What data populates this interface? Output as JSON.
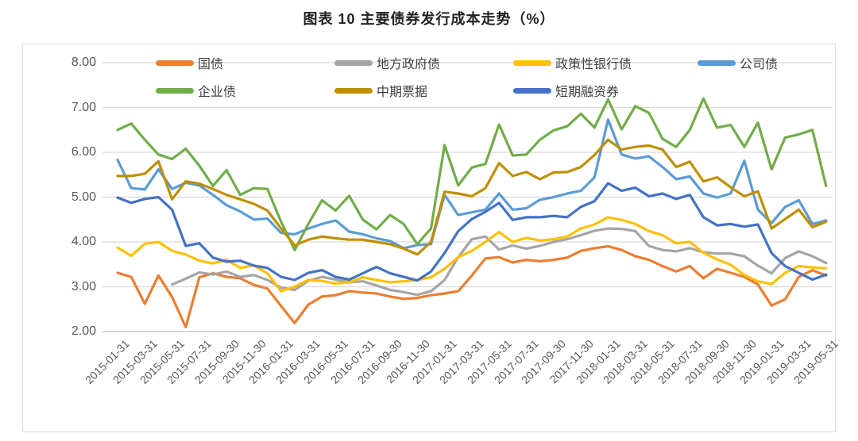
{
  "title": "图表 10 主要债券发行成本走势（%）",
  "chart_data": {
    "type": "line",
    "grid": "horizontal",
    "legend_position": "top-inside",
    "ylim": [
      2,
      8
    ],
    "y_tick_labels": [
      "8.00",
      "7.00",
      "6.00",
      "5.00",
      "4.00",
      "3.00",
      "2.00"
    ],
    "x_tick_labels": [
      "2015-01-31",
      "2015-03-31",
      "2015-05-31",
      "2015-07-31",
      "2015-09-30",
      "2015-11-30",
      "2016-01-31",
      "2016-03-31",
      "2016-05-31",
      "2016-07-31",
      "2016-09-30",
      "2016-11-30",
      "2017-01-31",
      "2017-03-31",
      "2017-05-31",
      "2017-07-31",
      "2017-09-30",
      "2017-11-30",
      "2018-01-31",
      "2018-03-31",
      "2018-05-31",
      "2018-07-31",
      "2018-09-30",
      "2018-11-30",
      "2019-01-31",
      "2019-03-31",
      "2019-05-31"
    ],
    "x_points_per_tick": 2,
    "colors": {
      "grid": "#d9d9d9",
      "axis": "#bfbfbf",
      "tick_text": "#595959"
    },
    "series": [
      {
        "name": "国债",
        "color": "#ED7D31",
        "values": [
          3.31,
          3.22,
          2.62,
          3.25,
          2.77,
          2.1,
          3.21,
          3.3,
          3.22,
          3.19,
          3.04,
          2.96,
          2.57,
          2.19,
          2.6,
          2.78,
          2.81,
          2.9,
          2.87,
          2.85,
          2.78,
          2.73,
          2.75,
          2.81,
          2.85,
          2.9,
          3.25,
          3.63,
          3.66,
          3.54,
          3.6,
          3.57,
          3.6,
          3.65,
          3.8,
          3.86,
          3.9,
          3.82,
          3.68,
          3.6,
          3.46,
          3.34,
          3.46,
          3.19,
          3.4,
          3.31,
          3.22,
          3.05,
          2.58,
          2.72,
          3.22,
          3.37,
          3.25
        ]
      },
      {
        "name": "地方政府债",
        "color": "#A5A5A5",
        "values": [
          null,
          null,
          null,
          null,
          3.05,
          3.18,
          3.32,
          3.27,
          3.34,
          3.22,
          3.26,
          3.15,
          2.98,
          2.93,
          3.13,
          3.22,
          3.16,
          3.1,
          3.12,
          3.03,
          2.93,
          2.88,
          2.82,
          2.9,
          3.15,
          3.66,
          4.06,
          4.12,
          3.83,
          3.92,
          3.85,
          3.91,
          4.0,
          4.06,
          4.15,
          4.25,
          4.3,
          4.29,
          4.24,
          3.91,
          3.82,
          3.79,
          3.86,
          3.77,
          3.74,
          3.74,
          3.68,
          3.47,
          3.3,
          3.64,
          3.79,
          3.68,
          3.53
        ]
      },
      {
        "name": "政策性银行债",
        "color": "#FFC000",
        "values": [
          3.87,
          3.69,
          3.96,
          4.0,
          3.8,
          3.72,
          3.58,
          3.52,
          3.6,
          3.42,
          3.48,
          3.3,
          2.9,
          3.0,
          3.15,
          3.13,
          3.07,
          3.1,
          3.21,
          3.15,
          3.1,
          3.12,
          3.15,
          3.21,
          3.4,
          3.66,
          3.8,
          4.0,
          4.22,
          4.0,
          4.09,
          4.03,
          4.06,
          4.12,
          4.3,
          4.39,
          4.55,
          4.49,
          4.4,
          4.24,
          4.15,
          3.97,
          4.0,
          3.76,
          3.61,
          3.49,
          3.26,
          3.12,
          3.06,
          3.31,
          3.46,
          3.43,
          3.41
        ]
      },
      {
        "name": "公司债",
        "color": "#5B9BD5",
        "values": [
          5.83,
          5.2,
          5.17,
          5.62,
          5.18,
          5.32,
          5.26,
          5.05,
          4.82,
          4.68,
          4.5,
          4.52,
          4.2,
          4.17,
          4.3,
          4.4,
          4.48,
          4.23,
          4.17,
          4.08,
          4.02,
          3.86,
          3.93,
          3.95,
          5.05,
          4.6,
          4.66,
          4.72,
          5.08,
          4.72,
          4.75,
          4.94,
          5.0,
          5.08,
          5.14,
          5.44,
          6.73,
          5.95,
          5.86,
          5.91,
          5.67,
          5.4,
          5.46,
          5.08,
          4.99,
          5.08,
          5.81,
          4.72,
          4.42,
          4.78,
          4.93,
          4.4,
          4.48
        ]
      },
      {
        "name": "企业债",
        "color": "#70AD47",
        "values": [
          6.5,
          6.64,
          6.28,
          5.95,
          5.85,
          6.08,
          5.7,
          5.25,
          5.6,
          5.05,
          5.2,
          5.18,
          4.45,
          3.82,
          4.4,
          4.93,
          4.7,
          5.03,
          4.5,
          4.28,
          4.6,
          4.4,
          3.95,
          4.3,
          6.16,
          5.26,
          5.66,
          5.74,
          6.62,
          5.93,
          5.95,
          6.28,
          6.49,
          6.58,
          6.86,
          6.55,
          7.18,
          6.51,
          7.03,
          6.88,
          6.3,
          6.12,
          6.5,
          7.2,
          6.55,
          6.61,
          6.12,
          6.66,
          5.62,
          6.33,
          6.4,
          6.5,
          5.25
        ]
      },
      {
        "name": "中期票据",
        "color": "#BF8F00",
        "values": [
          5.47,
          5.47,
          5.52,
          5.8,
          4.95,
          5.35,
          5.3,
          5.18,
          5.05,
          4.95,
          4.85,
          4.7,
          4.3,
          3.92,
          4.05,
          4.12,
          4.08,
          4.05,
          4.05,
          4.0,
          3.95,
          3.85,
          3.72,
          4.0,
          5.12,
          5.08,
          5.02,
          5.2,
          5.76,
          5.47,
          5.56,
          5.4,
          5.55,
          5.56,
          5.67,
          5.94,
          6.28,
          6.06,
          6.12,
          6.15,
          6.06,
          5.67,
          5.79,
          5.35,
          5.44,
          5.22,
          5.02,
          5.13,
          4.3,
          4.51,
          4.72,
          4.33,
          4.45
        ]
      },
      {
        "name": "短期融资券",
        "color": "#4472C4",
        "values": [
          4.99,
          4.87,
          4.96,
          5.0,
          4.72,
          3.91,
          3.97,
          3.65,
          3.56,
          3.58,
          3.47,
          3.42,
          3.22,
          3.15,
          3.31,
          3.37,
          3.22,
          3.16,
          3.3,
          3.44,
          3.3,
          3.22,
          3.14,
          3.34,
          3.75,
          4.24,
          4.51,
          4.67,
          4.87,
          4.49,
          4.55,
          4.55,
          4.58,
          4.55,
          4.78,
          4.91,
          5.31,
          5.14,
          5.21,
          5.02,
          5.08,
          4.96,
          5.05,
          4.55,
          4.37,
          4.4,
          4.34,
          4.39,
          3.75,
          3.46,
          3.31,
          3.16,
          3.27
        ]
      }
    ]
  }
}
